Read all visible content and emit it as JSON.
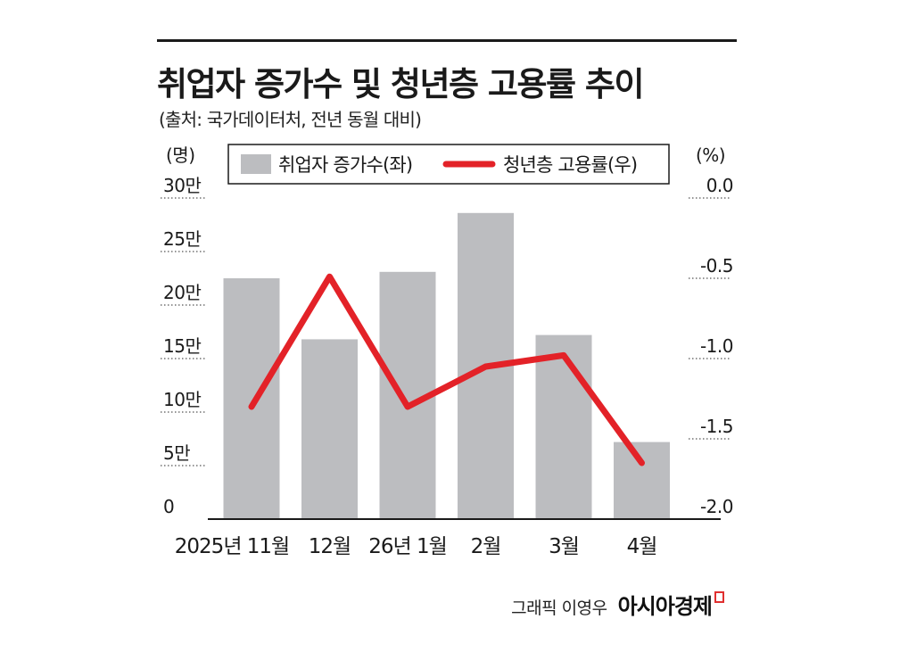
{
  "header": {
    "title": "취업자 증가수 및 청년층 고용률 추이",
    "source": "(출처: 국가데이터처, 전년 동월 대비)"
  },
  "footer": {
    "credit": "그래픽 이영우",
    "brand": "아시아경제"
  },
  "chart_data": {
    "type": "bar+line",
    "categories": [
      "2025년 11월",
      "12월",
      "26년 1월",
      "2월",
      "3월",
      "4월"
    ],
    "series": [
      {
        "name": "취업자 증가수(좌)",
        "type": "bar",
        "axis": "left",
        "color": "#bcbdc0",
        "values": [
          225000,
          168000,
          231000,
          286000,
          172000,
          72000
        ]
      },
      {
        "name": "청년층 고용률(우)",
        "type": "line",
        "axis": "right",
        "color": "#e32228",
        "values": [
          -1.3,
          -0.49,
          -1.3,
          -1.05,
          -0.98,
          -1.65
        ]
      }
    ],
    "left_axis": {
      "unit_label": "(명)",
      "ticks": [
        "30만",
        "25만",
        "20만",
        "15만",
        "10만",
        "5만",
        "0"
      ],
      "range": [
        0,
        310000
      ]
    },
    "right_axis": {
      "unit_label": "(%)",
      "ticks": [
        "0.0",
        "-0.5",
        "-1.0",
        "-1.5",
        "-2.0"
      ],
      "range": [
        -2.0,
        0.0
      ]
    },
    "legend_position": "top-center",
    "grid": false
  }
}
